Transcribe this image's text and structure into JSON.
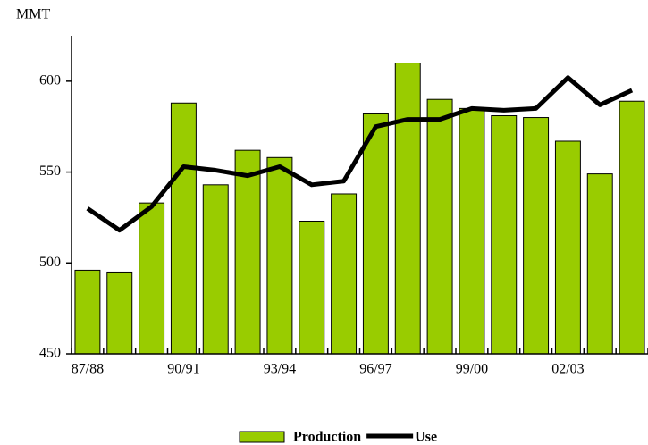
{
  "chart_data": {
    "type": "bar_line",
    "y_label": "MMT",
    "categories": [
      "87/88",
      null,
      null,
      "90/91",
      null,
      null,
      "93/94",
      null,
      null,
      "96/97",
      null,
      null,
      "99/00",
      null,
      null,
      "02/03",
      null,
      null
    ],
    "series": [
      {
        "name": "Production",
        "type": "bar",
        "color": "#99cc00",
        "values": [
          496,
          495,
          533,
          588,
          543,
          562,
          558,
          523,
          538,
          582,
          610,
          590,
          585,
          581,
          580,
          567,
          549,
          589
        ]
      },
      {
        "name": "Use",
        "type": "line",
        "color": "#000000",
        "values": [
          530,
          518,
          531,
          553,
          551,
          548,
          553,
          543,
          545,
          575,
          579,
          579,
          585,
          584,
          585,
          602,
          587,
          595
        ]
      }
    ],
    "ylim": [
      450,
      625
    ],
    "yticks": [
      450,
      500,
      550,
      600
    ]
  }
}
